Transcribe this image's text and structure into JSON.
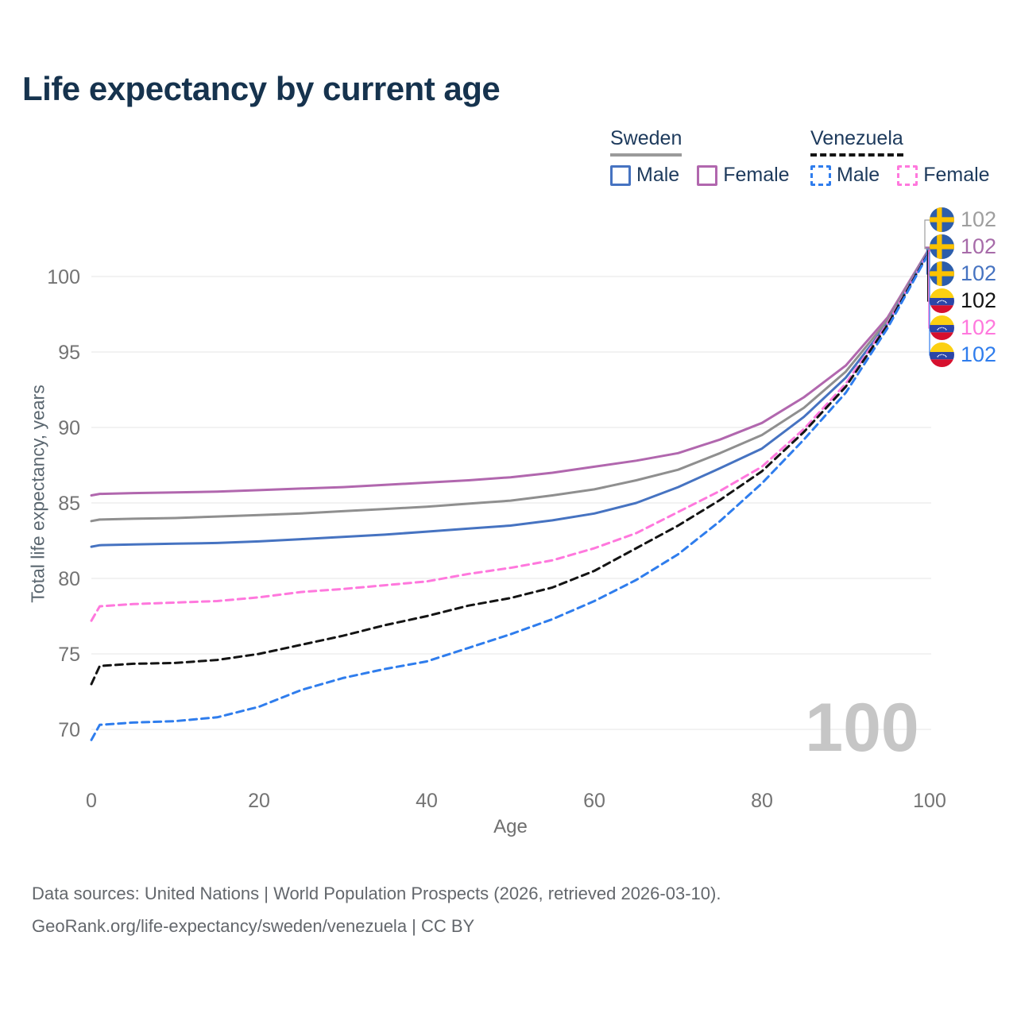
{
  "title": "Life expectancy by current age",
  "legend": {
    "groups": [
      {
        "label": "Sweden",
        "line_style": "solid",
        "underline_color": "#9a9a9a",
        "items": [
          {
            "label": "Male",
            "color": "#4673c1",
            "dashed": false
          },
          {
            "label": "Female",
            "color": "#b167ae",
            "dashed": false
          }
        ]
      },
      {
        "label": "Venezuela",
        "line_style": "dashed",
        "underline_color": "#141414",
        "items": [
          {
            "label": "Male",
            "color": "#2f7ded",
            "dashed": true
          },
          {
            "label": "Female",
            "color": "#ff78dd",
            "dashed": true
          }
        ]
      }
    ]
  },
  "chart_data": {
    "type": "line",
    "title": "Life expectancy by current age",
    "xlabel": "Age",
    "ylabel": "Total life expectancy, years",
    "xlim": [
      0,
      100
    ],
    "ylim": [
      68,
      103
    ],
    "xticks": [
      0,
      20,
      40,
      60,
      80,
      100
    ],
    "yticks": [
      70,
      75,
      80,
      85,
      90,
      95,
      100
    ],
    "grid": "horizontal-only",
    "legend_position": "top-right",
    "watermark_current_age": "100",
    "x": [
      0,
      1,
      5,
      10,
      15,
      20,
      25,
      30,
      35,
      40,
      45,
      50,
      55,
      60,
      65,
      70,
      75,
      80,
      85,
      90,
      95,
      100
    ],
    "series": [
      {
        "key": "sweden_female",
        "name": "Sweden Female",
        "country": "Sweden",
        "sex": "Female",
        "color": "#b167ae",
        "dashed": false,
        "values": [
          85.5,
          85.6,
          85.65,
          85.7,
          85.75,
          85.85,
          85.95,
          86.05,
          86.2,
          86.35,
          86.5,
          86.7,
          87.0,
          87.4,
          87.8,
          88.3,
          89.2,
          90.3,
          92.0,
          94.1,
          97.3,
          101.9
        ]
      },
      {
        "key": "sweden_both",
        "name": "Sweden Both sexes",
        "country": "Sweden",
        "sex": "Both",
        "color": "#8f8f8f",
        "dashed": false,
        "values": [
          83.8,
          83.9,
          83.95,
          84.0,
          84.1,
          84.2,
          84.3,
          84.45,
          84.6,
          84.75,
          84.95,
          85.15,
          85.5,
          85.9,
          86.5,
          87.2,
          88.3,
          89.5,
          91.3,
          93.7,
          97.1,
          101.85
        ]
      },
      {
        "key": "sweden_male",
        "name": "Sweden Male",
        "country": "Sweden",
        "sex": "Male",
        "color": "#4673c1",
        "dashed": false,
        "values": [
          82.1,
          82.2,
          82.25,
          82.3,
          82.35,
          82.45,
          82.6,
          82.75,
          82.9,
          83.1,
          83.3,
          83.5,
          83.85,
          84.3,
          85.0,
          86.05,
          87.3,
          88.6,
          90.7,
          93.3,
          96.9,
          101.8
        ]
      },
      {
        "key": "venezuela_female",
        "name": "Venezuela Female",
        "country": "Venezuela",
        "sex": "Female",
        "color": "#ff78dd",
        "dashed": true,
        "values": [
          77.2,
          78.15,
          78.3,
          78.4,
          78.5,
          78.75,
          79.1,
          79.3,
          79.55,
          79.8,
          80.3,
          80.7,
          81.2,
          82.0,
          83.0,
          84.4,
          85.8,
          87.4,
          89.9,
          92.9,
          96.9,
          101.75
        ]
      },
      {
        "key": "venezuela_both",
        "name": "Venezuela Both sexes",
        "country": "Venezuela",
        "sex": "Both",
        "color": "#141414",
        "dashed": true,
        "values": [
          73.0,
          74.2,
          74.35,
          74.4,
          74.6,
          75.0,
          75.6,
          76.2,
          76.9,
          77.5,
          78.2,
          78.7,
          79.4,
          80.5,
          82.0,
          83.5,
          85.2,
          87.1,
          89.7,
          92.7,
          96.8,
          101.7
        ]
      },
      {
        "key": "venezuela_male",
        "name": "Venezuela Male",
        "country": "Venezuela",
        "sex": "Male",
        "color": "#2f7ded",
        "dashed": true,
        "values": [
          69.3,
          70.3,
          70.45,
          70.55,
          70.8,
          71.5,
          72.6,
          73.4,
          74.0,
          74.5,
          75.4,
          76.3,
          77.3,
          78.5,
          79.9,
          81.6,
          83.8,
          86.3,
          89.2,
          92.3,
          96.6,
          101.65
        ]
      }
    ]
  },
  "end_labels": [
    {
      "flag": "sweden",
      "series": "sweden_both",
      "value": "102",
      "color": "#9e9e9e"
    },
    {
      "flag": "sweden",
      "series": "sweden_female",
      "value": "102",
      "color": "#a76ba9"
    },
    {
      "flag": "sweden",
      "series": "sweden_male",
      "value": "102",
      "color": "#4673c1"
    },
    {
      "flag": "venezuela",
      "series": "venezuela_both",
      "value": "102",
      "color": "#141414"
    },
    {
      "flag": "venezuela",
      "series": "venezuela_female",
      "value": "102",
      "color": "#ff78dd"
    },
    {
      "flag": "venezuela",
      "series": "venezuela_male",
      "value": "102",
      "color": "#2f7ded"
    }
  ],
  "footer": {
    "line1": "Data sources: United Nations | World Population Prospects (2026, retrieved 2026-03-10).",
    "line2": "GeoRank.org/life-expectancy/sweden/venezuela | CC BY"
  }
}
